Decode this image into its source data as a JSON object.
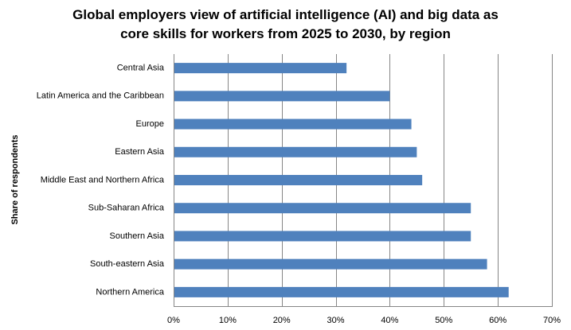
{
  "chart_data": {
    "type": "bar",
    "orientation": "horizontal",
    "title_lines": [
      "Global employers view of artificial intelligence (AI) and big data as",
      "core skills for workers from 2025 to 2030, by region"
    ],
    "xlabel": "",
    "ylabel": "Share of respondents",
    "categories": [
      "Central Asia",
      "Latin America and the Caribbean",
      "Europe",
      "Eastern Asia",
      "Middle East and Northern Africa",
      "Sub-Saharan Africa",
      "Southern Asia",
      "South-eastern Asia",
      "Northern America"
    ],
    "values": [
      32,
      40,
      44,
      45,
      46,
      55,
      55,
      58,
      62
    ],
    "xlim": [
      0,
      70
    ],
    "x_ticks": [
      0,
      10,
      20,
      30,
      40,
      50,
      60,
      70
    ],
    "x_tick_labels": [
      "0%",
      "10%",
      "20%",
      "30%",
      "40%",
      "50%",
      "60%",
      "70%"
    ],
    "grid": "vertical",
    "legend": "none",
    "bar_color": "#4F81BD",
    "grid_color": "#868686"
  }
}
